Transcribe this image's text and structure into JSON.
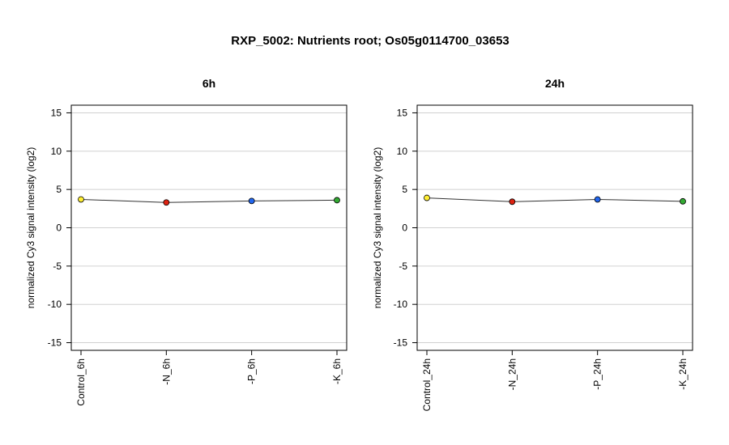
{
  "title": "RXP_5002: Nutrients root; Os05g0114700_03653",
  "chart_data": [
    {
      "type": "line",
      "title": "6h",
      "ylabel": "normalized Cy3 signal intensity (log2)",
      "ylim": [
        -16,
        16
      ],
      "yticks": [
        -15,
        -10,
        -5,
        0,
        5,
        10,
        15
      ],
      "grid": true,
      "categories": [
        "Control_6h",
        "-N_6h",
        "-P_6h",
        "-K_6h"
      ],
      "values": [
        3.7,
        3.3,
        3.5,
        3.6
      ],
      "point_colors": [
        "#ffee33",
        "#dd2211",
        "#2266ee",
        "#33aa33"
      ]
    },
    {
      "type": "line",
      "title": "24h",
      "ylabel": "normalized Cy3 signal intensity (log2)",
      "ylim": [
        -16,
        16
      ],
      "yticks": [
        -15,
        -10,
        -5,
        0,
        5,
        10,
        15
      ],
      "grid": true,
      "categories": [
        "Control_24h",
        "-N_24h",
        "-P_24h",
        "-K_24h"
      ],
      "values": [
        3.9,
        3.4,
        3.7,
        3.45
      ],
      "point_colors": [
        "#ffee33",
        "#dd2211",
        "#2266ee",
        "#33aa33"
      ]
    }
  ]
}
